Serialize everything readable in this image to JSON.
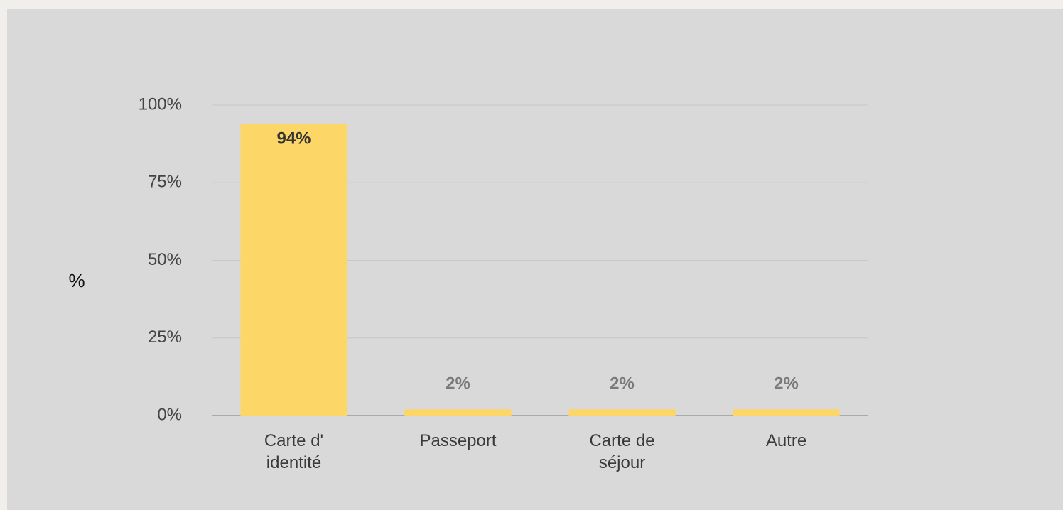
{
  "chart_data": {
    "type": "bar",
    "y_label": "%",
    "categories": [
      "Carte d' identité",
      "Passeport",
      "Carte de séjour",
      "Autre"
    ],
    "values": [
      94,
      2,
      2,
      2
    ],
    "value_labels": [
      "94%",
      "2%",
      "2%",
      "2%"
    ],
    "color": "#fdd668",
    "ylim": [
      0,
      100
    ],
    "yticks": [
      {
        "value": 0,
        "label": "0%"
      },
      {
        "value": 25,
        "label": "25%"
      },
      {
        "value": 50,
        "label": "50%"
      },
      {
        "value": 75,
        "label": "75%"
      },
      {
        "value": 100,
        "label": "100%"
      }
    ],
    "grid": true
  }
}
